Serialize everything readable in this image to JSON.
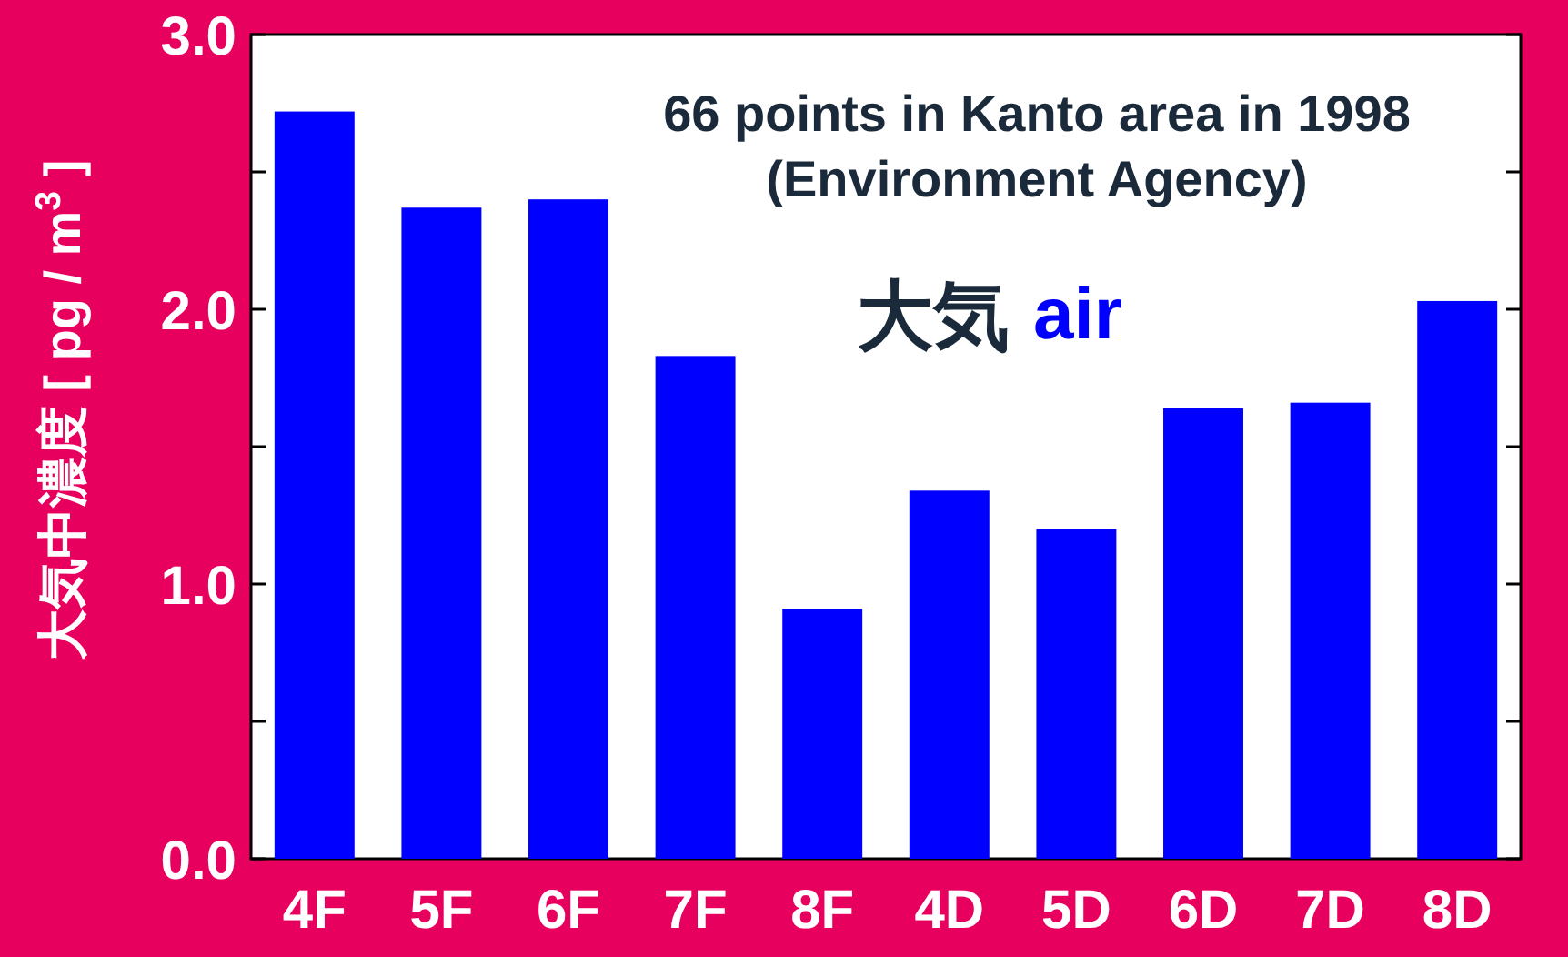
{
  "chart_data": {
    "type": "bar",
    "ylabel": "大気中濃度 [ pg / m$^{3}$ ]",
    "categories": [
      "4F",
      "5F",
      "6F",
      "7F",
      "8F",
      "4D",
      "5D",
      "6D",
      "7D",
      "8D"
    ],
    "values": [
      2.72,
      2.37,
      2.4,
      1.83,
      0.91,
      1.34,
      1.2,
      1.64,
      1.66,
      2.03
    ],
    "color": "#0000ff",
    "ylim": [
      0,
      3
    ],
    "yticks": [
      {
        "value": 0,
        "label": "0.0"
      },
      {
        "value": 0.5,
        "label": null
      },
      {
        "value": 1,
        "label": "1.0"
      },
      {
        "value": 1.5,
        "label": null
      },
      {
        "value": 2,
        "label": "2.0"
      },
      {
        "value": 2.5,
        "label": null
      },
      {
        "value": 3,
        "label": "3.0"
      }
    ],
    "annotations": [
      "66 points in Kanto area in 1998",
      "(Environment Agency)",
      "大気",
      "air"
    ],
    "grid": false
  }
}
